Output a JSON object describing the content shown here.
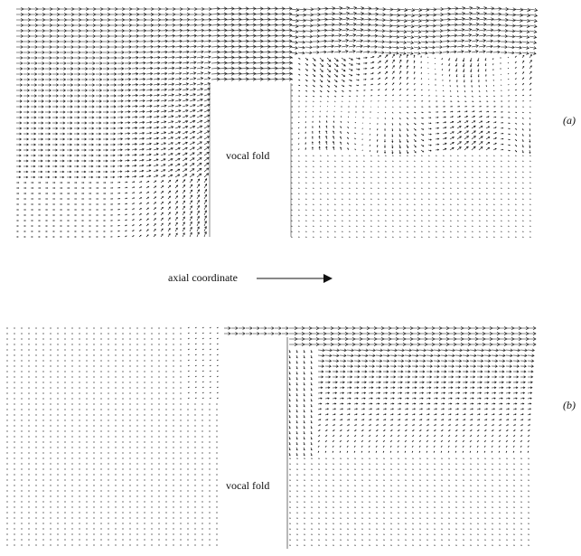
{
  "labels": {
    "vocal_fold_a": "vocal fold",
    "vocal_fold_b": "vocal fold",
    "axial_coordinate": "axial coordinate",
    "panel_a": "(a)",
    "panel_b": "(b)"
  },
  "colors": {
    "ink": "#111111",
    "background": "#ffffff"
  }
}
